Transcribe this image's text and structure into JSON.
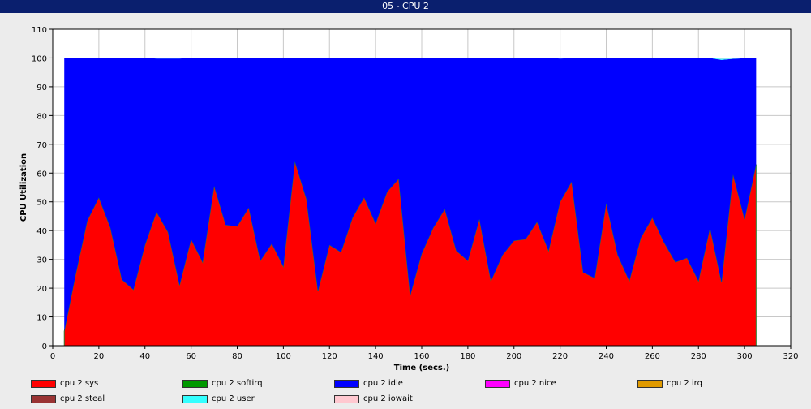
{
  "window": {
    "title": "05 - CPU 2"
  },
  "chart_data": {
    "type": "area",
    "stacked": true,
    "xlabel": "Time (secs.)",
    "ylabel": "CPU Utilization",
    "xlim": [
      0,
      320
    ],
    "ylim": [
      0,
      110
    ],
    "xticks": [
      0,
      20,
      40,
      60,
      80,
      100,
      120,
      140,
      160,
      180,
      200,
      220,
      240,
      260,
      280,
      300,
      320
    ],
    "yticks": [
      0,
      10,
      20,
      30,
      40,
      50,
      60,
      70,
      80,
      90,
      100,
      110
    ],
    "grid": true,
    "legend_position": "bottom",
    "x": [
      5,
      10,
      15,
      20,
      25,
      30,
      35,
      40,
      45,
      50,
      55,
      60,
      65,
      70,
      75,
      80,
      85,
      90,
      95,
      100,
      105,
      110,
      115,
      120,
      125,
      130,
      135,
      140,
      145,
      150,
      155,
      160,
      165,
      170,
      175,
      180,
      185,
      190,
      195,
      200,
      205,
      210,
      215,
      220,
      225,
      230,
      235,
      240,
      245,
      250,
      255,
      260,
      265,
      270,
      275,
      280,
      285,
      290,
      295,
      300,
      305
    ],
    "series": [
      {
        "name": "cpu 2 sys",
        "color": "#ff0000",
        "values": [
          5,
          25,
          43.5,
          51.5,
          41,
          23,
          19.5,
          35,
          46.5,
          39.5,
          21,
          37,
          29,
          55.5,
          42,
          41.5,
          48,
          29.5,
          35.5,
          27.5,
          64,
          51,
          19,
          35,
          32.5,
          44.5,
          51.5,
          42.5,
          53.5,
          58,
          17.5,
          32,
          41,
          47.5,
          33,
          29.5,
          44,
          22.5,
          31.5,
          36.5,
          37,
          43,
          33,
          50,
          57,
          25.5,
          23.5,
          49.5,
          31.5,
          22.5,
          37.5,
          44.5,
          36,
          29,
          30.5,
          22.5,
          41,
          22,
          59.5,
          44,
          63
        ]
      },
      {
        "name": "cpu 2 softirq",
        "color": "#009900",
        "values": [
          0,
          0,
          0,
          0,
          0,
          0,
          0,
          0,
          0,
          0,
          0,
          0,
          0,
          0,
          0,
          0,
          0,
          0,
          0,
          0,
          0,
          0,
          0,
          0,
          0,
          0,
          0,
          0,
          0,
          0,
          0,
          0,
          0,
          0,
          0,
          0,
          0,
          0,
          0,
          0,
          0,
          0,
          0,
          0,
          0,
          0,
          0,
          0,
          0,
          0,
          0,
          0,
          0,
          0,
          0,
          0,
          0,
          0,
          0,
          0,
          0
        ]
      },
      {
        "name": "cpu 2 idle",
        "color": "#0000ff",
        "values": [
          95,
          75,
          56.5,
          48.5,
          59,
          77,
          80.5,
          65,
          53.3,
          60.3,
          78.8,
          63,
          71,
          44.4,
          58,
          58.5,
          51.9,
          70.5,
          64.5,
          72.5,
          36,
          49,
          81,
          65,
          67.4,
          55.5,
          48.5,
          57.5,
          46.4,
          41.9,
          82.5,
          68,
          59,
          52.5,
          67,
          70.5,
          56,
          77.4,
          68.4,
          63.4,
          62.9,
          57,
          67,
          49.8,
          42.9,
          74.5,
          76.4,
          50.4,
          68.5,
          77.5,
          62.5,
          55.4,
          64,
          71,
          69.5,
          77.5,
          59,
          77.3,
          40.2,
          55.9,
          37
        ]
      },
      {
        "name": "cpu 2 nice",
        "color": "#ff00ff",
        "values": [
          0,
          0,
          0,
          0,
          0,
          0,
          0,
          0,
          0,
          0,
          0,
          0,
          0,
          0,
          0,
          0,
          0,
          0,
          0,
          0,
          0,
          0,
          0,
          0,
          0,
          0,
          0,
          0,
          0,
          0,
          0,
          0,
          0,
          0,
          0,
          0,
          0,
          0,
          0,
          0,
          0,
          0,
          0,
          0,
          0,
          0,
          0,
          0,
          0,
          0,
          0,
          0,
          0,
          0,
          0,
          0,
          0,
          0,
          0,
          0,
          0
        ]
      },
      {
        "name": "cpu 2 irq",
        "color": "#e09a00",
        "values": [
          0,
          0,
          0,
          0,
          0,
          0,
          0,
          0,
          0,
          0,
          0,
          0,
          0,
          0,
          0,
          0,
          0,
          0,
          0,
          0,
          0,
          0,
          0,
          0,
          0,
          0,
          0,
          0,
          0,
          0,
          0,
          0,
          0,
          0,
          0,
          0,
          0,
          0,
          0,
          0,
          0,
          0,
          0,
          0,
          0,
          0,
          0,
          0,
          0,
          0,
          0,
          0,
          0,
          0,
          0,
          0,
          0,
          0,
          0,
          0,
          0
        ]
      },
      {
        "name": "cpu 2 steal",
        "color": "#993333",
        "values": [
          0,
          0,
          0,
          0,
          0,
          0,
          0,
          0,
          0,
          0,
          0,
          0,
          0,
          0,
          0,
          0,
          0,
          0,
          0,
          0,
          0,
          0,
          0,
          0,
          0,
          0,
          0,
          0,
          0,
          0,
          0,
          0,
          0,
          0,
          0,
          0,
          0,
          0,
          0,
          0,
          0,
          0,
          0,
          0,
          0,
          0,
          0,
          0,
          0,
          0,
          0,
          0,
          0,
          0,
          0,
          0,
          0,
          0,
          0,
          0,
          0
        ]
      },
      {
        "name": "cpu 2 user",
        "color": "#33ffff",
        "values": [
          0,
          0,
          0,
          0,
          0,
          0,
          0,
          0,
          0.2,
          0.2,
          0.2,
          0,
          0,
          0,
          0,
          0,
          0,
          0,
          0,
          0,
          0,
          0,
          0,
          0,
          0,
          0,
          0,
          0,
          0,
          0,
          0,
          0,
          0,
          0,
          0,
          0,
          0,
          0,
          0,
          0,
          0,
          0,
          0,
          0.2,
          0.1,
          0,
          0,
          0,
          0,
          0,
          0,
          0,
          0,
          0,
          0,
          0,
          0,
          0.4,
          0.1,
          0,
          0
        ]
      },
      {
        "name": "cpu 2 iowait",
        "color": "#ffc8d0",
        "values": [
          0,
          0,
          0,
          0,
          0,
          0,
          0,
          0,
          0,
          0,
          0,
          0,
          0,
          0.1,
          0,
          0,
          0.1,
          0,
          0,
          0,
          0,
          0,
          0,
          0,
          0.1,
          0,
          0,
          0,
          0.1,
          0.1,
          0,
          0,
          0,
          0,
          0,
          0,
          0,
          0.1,
          0.1,
          0.1,
          0.1,
          0,
          0,
          0,
          0,
          0,
          0.1,
          0.1,
          0,
          0,
          0,
          0.1,
          0,
          0,
          0,
          0,
          0,
          0.3,
          0.2,
          0.1,
          0
        ]
      }
    ]
  }
}
